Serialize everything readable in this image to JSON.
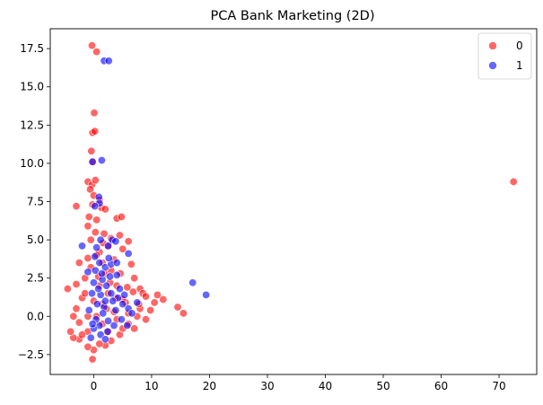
{
  "chart_data": {
    "type": "scatter",
    "title": "PCA Bank Marketing (2D)",
    "xlabel": "",
    "ylabel": "",
    "xlim": [
      -7.5,
      76.5
    ],
    "ylim": [
      -3.8,
      18.8
    ],
    "xticks": [
      0,
      10,
      20,
      30,
      40,
      50,
      60,
      70
    ],
    "yticks": [
      -2.5,
      0.0,
      2.5,
      5.0,
      7.5,
      10.0,
      12.5,
      15.0,
      17.5
    ],
    "xtick_labels": [
      "0",
      "10",
      "20",
      "30",
      "40",
      "50",
      "60",
      "70"
    ],
    "ytick_labels": [
      "−2.5",
      "0.0",
      "2.5",
      "5.0",
      "7.5",
      "10.0",
      "12.5",
      "15.0",
      "17.5"
    ],
    "legend_position": "top-right",
    "grid": false,
    "series": [
      {
        "name": "0",
        "color": "#ff0000",
        "points": [
          [
            72.5,
            8.8
          ],
          [
            -0.3,
            17.7
          ],
          [
            0.5,
            17.3
          ],
          [
            0.1,
            13.3
          ],
          [
            -0.2,
            12.0
          ],
          [
            0.2,
            12.1
          ],
          [
            -0.4,
            10.8
          ],
          [
            -0.2,
            10.1
          ],
          [
            -1.0,
            8.8
          ],
          [
            -0.3,
            8.6
          ],
          [
            0.3,
            8.9
          ],
          [
            -0.6,
            8.3
          ],
          [
            -3.0,
            7.2
          ],
          [
            0.0,
            7.9
          ],
          [
            -0.2,
            7.3
          ],
          [
            1.3,
            7.1
          ],
          [
            2.0,
            7.0
          ],
          [
            1.0,
            7.6
          ],
          [
            4.0,
            6.4
          ],
          [
            4.8,
            6.5
          ],
          [
            -1.0,
            5.9
          ],
          [
            0.5,
            6.3
          ],
          [
            1.8,
            5.4
          ],
          [
            3.0,
            5.1
          ],
          [
            4.5,
            5.3
          ],
          [
            6.0,
            4.9
          ],
          [
            -0.5,
            5.0
          ],
          [
            2.5,
            4.6
          ],
          [
            5.0,
            4.4
          ],
          [
            1.0,
            4.2
          ],
          [
            -2.5,
            3.5
          ],
          [
            6.5,
            3.4
          ],
          [
            -1.0,
            3.8
          ],
          [
            3.5,
            3.7
          ],
          [
            7.0,
            2.5
          ],
          [
            8.0,
            1.8
          ],
          [
            8.5,
            1.5
          ],
          [
            9.0,
            1.3
          ],
          [
            11.0,
            1.4
          ],
          [
            12.0,
            1.1
          ],
          [
            10.5,
            0.9
          ],
          [
            14.5,
            0.6
          ],
          [
            15.5,
            0.2
          ],
          [
            9.8,
            0.4
          ],
          [
            8.0,
            0.5
          ],
          [
            7.0,
            -0.8
          ],
          [
            6.0,
            -0.5
          ],
          [
            5.5,
            0.9
          ],
          [
            4.5,
            -1.2
          ],
          [
            3.0,
            -1.6
          ],
          [
            2.0,
            -1.9
          ],
          [
            1.0,
            -1.8
          ],
          [
            0.0,
            -2.2
          ],
          [
            -0.2,
            -2.8
          ],
          [
            -1.0,
            -2.0
          ],
          [
            -2.5,
            -1.5
          ],
          [
            -3.5,
            -1.4
          ],
          [
            -4.5,
            1.8
          ],
          [
            -3.0,
            0.5
          ],
          [
            -2.0,
            1.2
          ],
          [
            -1.5,
            2.5
          ],
          [
            -3.0,
            2.1
          ],
          [
            -2.5,
            -0.4
          ],
          [
            -1.0,
            -1.0
          ],
          [
            0.5,
            0.0
          ],
          [
            1.5,
            0.8
          ],
          [
            2.5,
            1.5
          ],
          [
            3.5,
            0.3
          ],
          [
            4.0,
            2.0
          ],
          [
            5.0,
            1.1
          ],
          [
            6.0,
            0.2
          ],
          [
            7.5,
            0.0
          ],
          [
            2.0,
            2.8
          ],
          [
            3.0,
            3.0
          ],
          [
            1.0,
            2.0
          ],
          [
            0.0,
            1.0
          ],
          [
            -1.0,
            0.0
          ],
          [
            1.5,
            -0.5
          ],
          [
            2.5,
            -1.0
          ],
          [
            4.0,
            -0.2
          ],
          [
            5.0,
            -0.8
          ],
          [
            -0.5,
            3.2
          ],
          [
            0.5,
            4.0
          ],
          [
            1.5,
            3.5
          ],
          [
            -2.0,
            -1.2
          ],
          [
            -1.5,
            1.5
          ],
          [
            0.8,
            2.6
          ],
          [
            2.2,
            0.5
          ],
          [
            3.8,
            1.2
          ],
          [
            6.8,
            1.6
          ],
          [
            9.0,
            -0.2
          ],
          [
            7.8,
            0.8
          ],
          [
            -3.5,
            0.0
          ],
          [
            -4.0,
            -1.0
          ],
          [
            0.3,
            5.5
          ],
          [
            -0.8,
            6.5
          ],
          [
            1.6,
            4.8
          ],
          [
            2.8,
            2.2
          ],
          [
            4.6,
            2.8
          ],
          [
            5.8,
            1.9
          ]
        ]
      },
      {
        "name": "1",
        "color": "#0000ff",
        "points": [
          [
            1.8,
            16.7
          ],
          [
            2.6,
            16.7
          ],
          [
            -0.2,
            10.1
          ],
          [
            1.4,
            10.2
          ],
          [
            0.9,
            7.8
          ],
          [
            1.0,
            7.4
          ],
          [
            0.2,
            7.2
          ],
          [
            19.4,
            1.4
          ],
          [
            17.1,
            2.2
          ],
          [
            6.0,
            4.1
          ],
          [
            -2.0,
            4.6
          ],
          [
            1.2,
            5.0
          ],
          [
            3.2,
            5.0
          ],
          [
            2.5,
            4.6
          ],
          [
            3.8,
            4.9
          ],
          [
            0.5,
            4.5
          ],
          [
            1.0,
            3.5
          ],
          [
            2.0,
            3.2
          ],
          [
            3.0,
            3.4
          ],
          [
            4.0,
            2.7
          ],
          [
            2.2,
            2.0
          ],
          [
            1.2,
            1.4
          ],
          [
            0.0,
            2.2
          ],
          [
            -1.0,
            2.9
          ],
          [
            0.6,
            0.8
          ],
          [
            1.8,
            0.6
          ],
          [
            3.0,
            1.5
          ],
          [
            4.2,
            1.2
          ],
          [
            5.0,
            0.8
          ],
          [
            6.0,
            0.5
          ],
          [
            2.5,
            -0.3
          ],
          [
            1.0,
            -0.6
          ],
          [
            0.0,
            -0.8
          ],
          [
            -0.5,
            -1.4
          ],
          [
            3.5,
            -0.6
          ],
          [
            4.8,
            -0.2
          ],
          [
            5.8,
            -0.6
          ],
          [
            2.0,
            1.0
          ],
          [
            1.5,
            2.4
          ],
          [
            0.3,
            3.0
          ],
          [
            -0.3,
            1.5
          ],
          [
            3.8,
            0.4
          ],
          [
            2.8,
            2.6
          ],
          [
            4.5,
            1.8
          ],
          [
            1.2,
            -1.2
          ],
          [
            2.4,
            -1.0
          ],
          [
            -0.8,
            0.4
          ],
          [
            0.8,
            1.8
          ],
          [
            3.3,
            1.0
          ],
          [
            5.3,
            1.4
          ],
          [
            0.4,
            -0.2
          ],
          [
            1.6,
            0.2
          ],
          [
            2.6,
            3.8
          ],
          [
            0.2,
            3.9
          ],
          [
            4.0,
            3.5
          ],
          [
            1.4,
            2.8
          ],
          [
            6.6,
            0.2
          ],
          [
            7.5,
            0.9
          ],
          [
            -0.2,
            -0.5
          ],
          [
            2.0,
            -1.5
          ]
        ]
      }
    ]
  }
}
